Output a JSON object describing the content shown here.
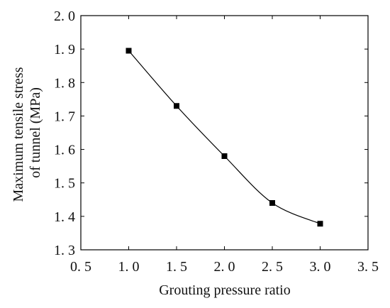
{
  "chart_data": {
    "type": "line",
    "xlabel": "Grouting pressure ratio",
    "ylabel_lines": [
      "Maximum tensile stress",
      "of tunnel (MPa)"
    ],
    "xlim": [
      0.5,
      3.5
    ],
    "ylim": [
      1.3,
      2.0
    ],
    "x_ticks": [
      0.5,
      1.0,
      1.5,
      2.0,
      2.5,
      3.0,
      3.5
    ],
    "y_ticks": [
      1.3,
      1.4,
      1.5,
      1.6,
      1.7,
      1.8,
      1.9,
      2.0
    ],
    "x_tick_labels": [
      "0. 5",
      "1. 0",
      "1. 5",
      "2. 0",
      "2. 5",
      "3. 0",
      "3. 5"
    ],
    "y_tick_labels": [
      "1. 3",
      "1. 4",
      "1. 5",
      "1. 6",
      "1. 7",
      "1. 8",
      "1. 9",
      "2. 0"
    ],
    "grid": false,
    "series": [
      {
        "x": [
          1.0,
          1.5,
          2.0,
          2.5,
          3.0
        ],
        "y": [
          1.895,
          1.73,
          1.58,
          1.44,
          1.378
        ],
        "marker": "square",
        "color": "#000000"
      }
    ]
  }
}
